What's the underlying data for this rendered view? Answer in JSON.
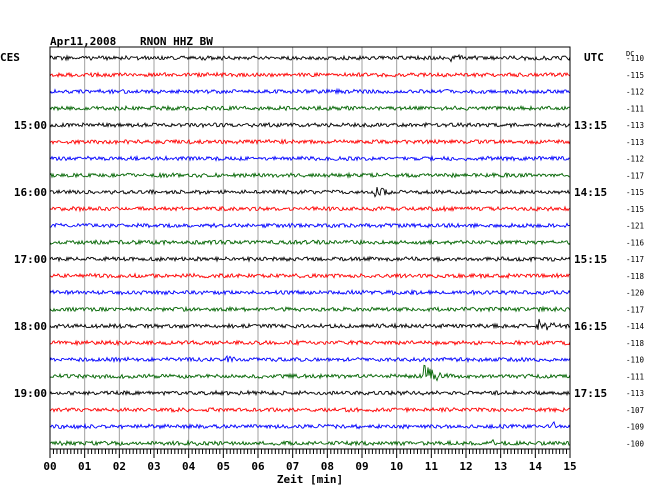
{
  "header": {
    "date": "Apr11,2008",
    "station": "RNON HHZ BW",
    "left_zone": "CES",
    "right_zone": "UTC",
    "dc_label": "DC"
  },
  "chart_data": {
    "type": "line",
    "title": "Apr11,2008   RNON HHZ BW",
    "xlabel": "Zeit [min]",
    "x_ticks": [
      "00",
      "01",
      "02",
      "03",
      "04",
      "05",
      "06",
      "07",
      "08",
      "09",
      "10",
      "11",
      "12",
      "13",
      "14",
      "15"
    ],
    "xlim": [
      0,
      15
    ],
    "left_time_labels": [
      {
        "trace": 4,
        "label": "15:00"
      },
      {
        "trace": 8,
        "label": "16:00"
      },
      {
        "trace": 12,
        "label": "17:00"
      },
      {
        "trace": 16,
        "label": "18:00"
      },
      {
        "trace": 20,
        "label": "19:00"
      }
    ],
    "right_time_labels": [
      {
        "trace": 4,
        "label": "13:15"
      },
      {
        "trace": 8,
        "label": "14:15"
      },
      {
        "trace": 12,
        "label": "15:15"
      },
      {
        "trace": 16,
        "label": "16:15"
      },
      {
        "trace": 20,
        "label": "17:15"
      }
    ],
    "trace_colors": [
      "#000000",
      "#ff0000",
      "#0000ff",
      "#006400"
    ],
    "dc_offsets": [
      "-110",
      "-115",
      "-112",
      "-111",
      "-113",
      "-113",
      "-112",
      "-117",
      "-115",
      "-115",
      "-121",
      "-116",
      "-117",
      "-118",
      "-120",
      "-117",
      "-114",
      "-118",
      "-110",
      "-111",
      "-113",
      "-107",
      "-109",
      "-100"
    ],
    "events": [
      {
        "trace": 0,
        "minute": 11.6,
        "amplitude": 6
      },
      {
        "trace": 8,
        "minute": 9.4,
        "amplitude": 7
      },
      {
        "trace": 16,
        "minute": 14.1,
        "amplitude": 7
      },
      {
        "trace": 18,
        "minute": 5.1,
        "amplitude": 4
      },
      {
        "trace": 19,
        "minute": 10.8,
        "amplitude": 14
      },
      {
        "trace": 22,
        "minute": 14.5,
        "amplitude": 4
      },
      {
        "trace": 23,
        "minute": 12.8,
        "amplitude": 3
      }
    ]
  }
}
